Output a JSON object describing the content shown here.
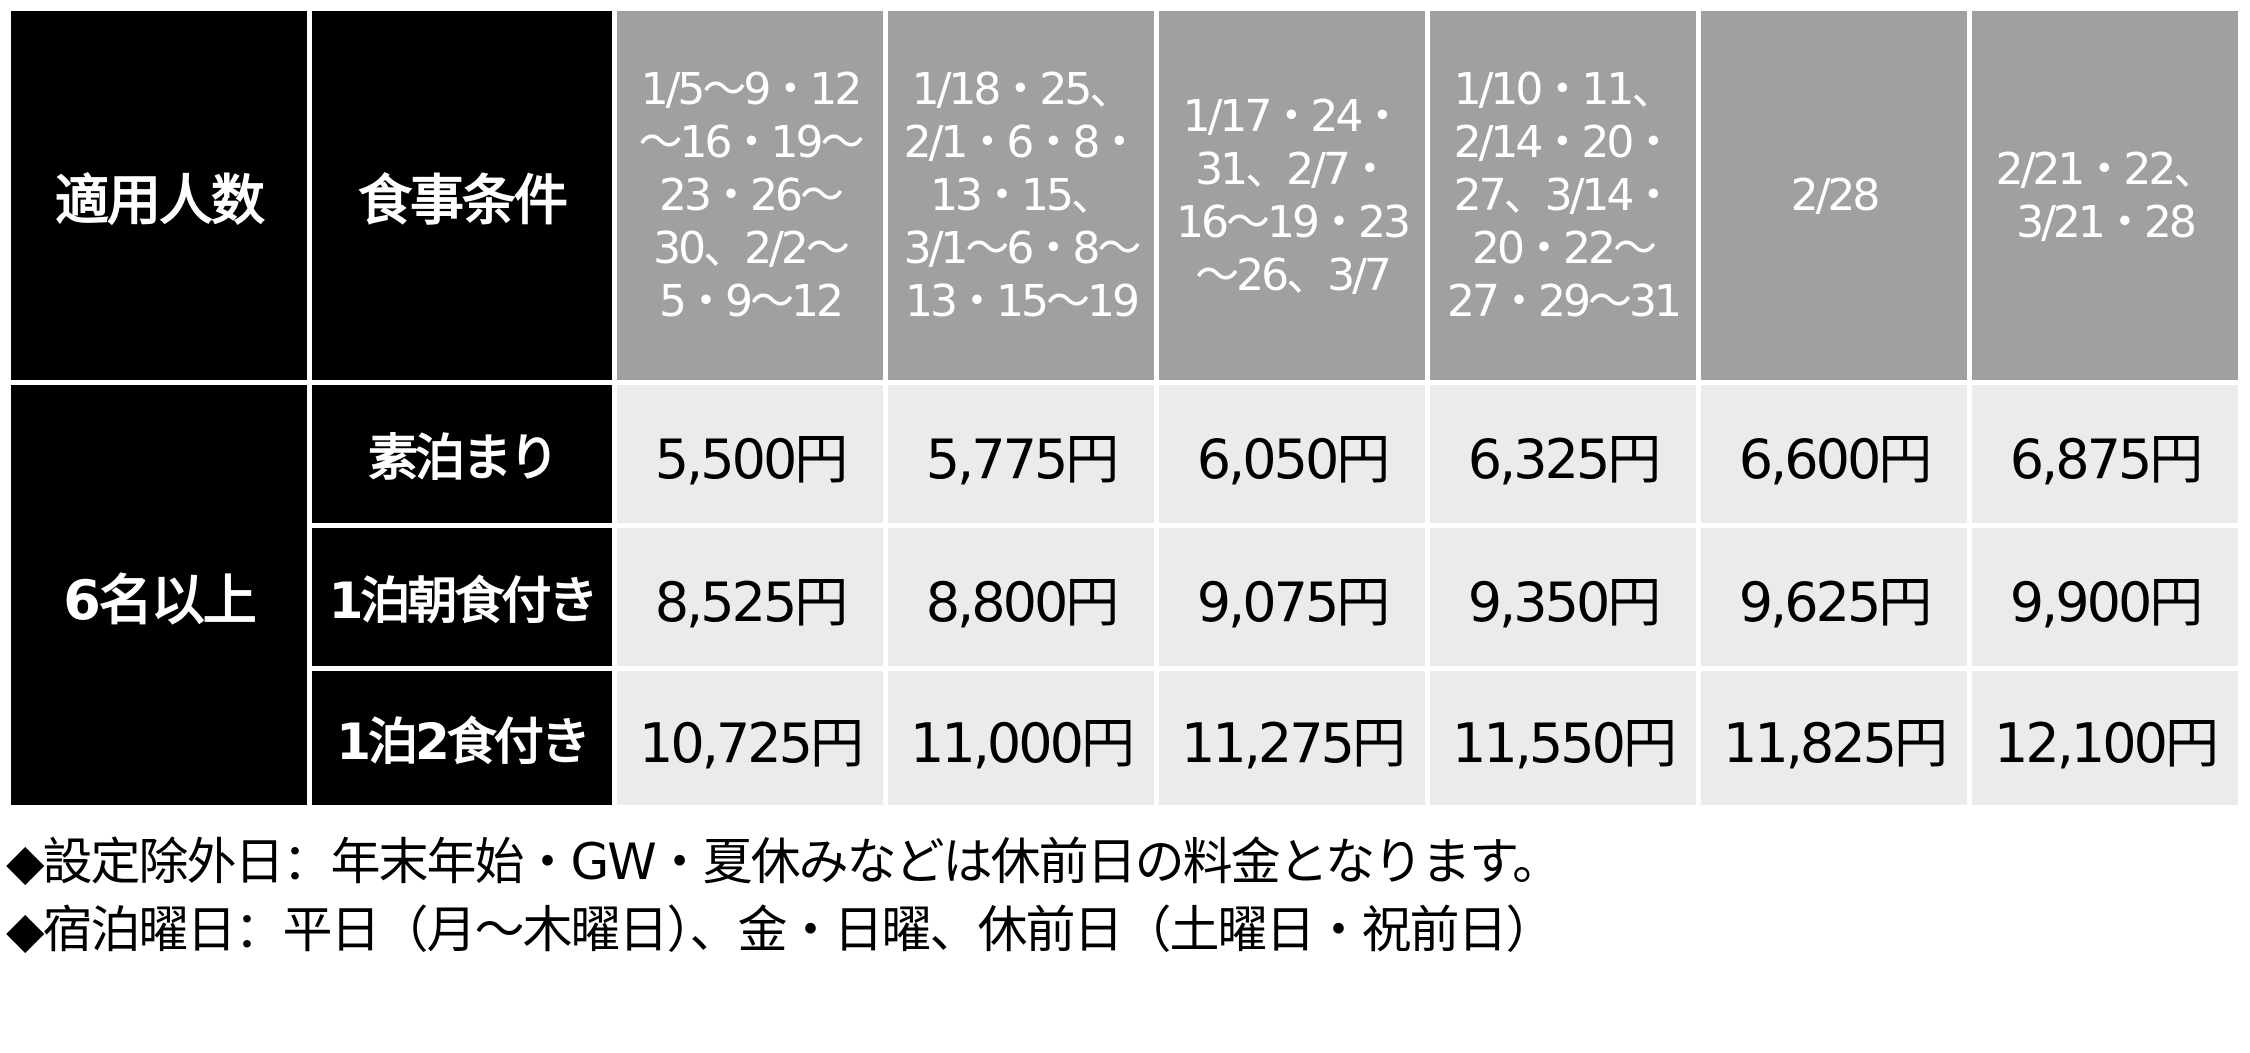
{
  "table": {
    "header_persons": "適用人数",
    "header_meal": "食事条件",
    "date_columns": [
      "1/5～9・12\n～16・19～\n23・26～\n30、2/2～\n5・9～12",
      "1/18・25、\n2/1・6・8・\n13・15、\n3/1～6・8～\n13・15～19",
      "1/17・24・\n31、2/7・\n16～19・23\n～26、3/7",
      "1/10・11、\n2/14・20・\n27、3/14・\n20・22～\n27・29～31",
      "2/28",
      "2/21・22、\n3/21・28"
    ],
    "persons_group": "6名以上",
    "rows": [
      {
        "meal": "素泊まり",
        "prices": [
          "5,500円",
          "5,775円",
          "6,050円",
          "6,325円",
          "6,600円",
          "6,875円"
        ]
      },
      {
        "meal": "1泊朝食付き",
        "prices": [
          "8,525円",
          "8,800円",
          "9,075円",
          "9,350円",
          "9,625円",
          "9,900円"
        ]
      },
      {
        "meal": "1泊2食付き",
        "prices": [
          "10,725円",
          "11,000円",
          "11,275円",
          "11,550円",
          "11,825円",
          "12,100円"
        ]
      }
    ]
  },
  "notes": [
    "◆設定除外日：年末年始・GW・夏休みなどは休前日の料金となります。",
    "◆宿泊曜日：平日（月～木曜日）、金・日曜、休前日（土曜日・祝前日）"
  ],
  "colors": {
    "header_black": "#000000",
    "header_gray": "#a0a0a1",
    "cell_bg": "#ebebeb"
  }
}
